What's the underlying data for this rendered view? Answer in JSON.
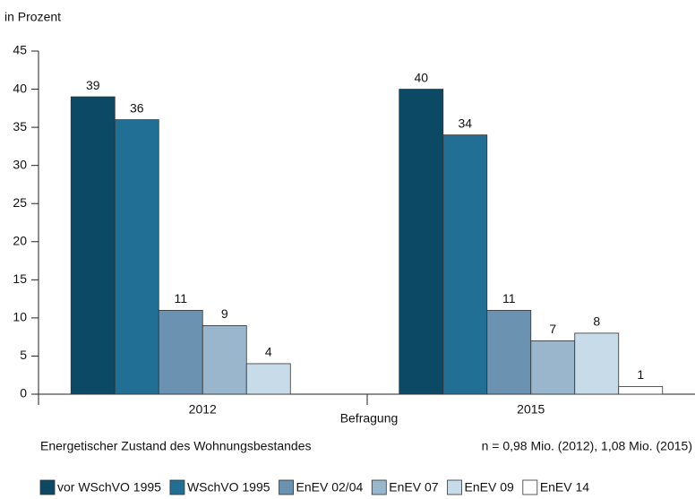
{
  "chart_data": {
    "type": "bar",
    "y_label": "in Prozent",
    "x_label": "Befragung",
    "legend_title": "Energetischer Zustand des Wohnungsbestandes",
    "note": "n = 0,98 Mio. (2012), 1,08 Mio. (2015)",
    "categories": [
      "2012",
      "2015"
    ],
    "series": [
      {
        "name": "vor WSchVO 1995",
        "color": "#0b4965",
        "values": [
          39,
          40
        ]
      },
      {
        "name": "WSchVO 1995",
        "color": "#226f95",
        "values": [
          36,
          34
        ]
      },
      {
        "name": "EnEV 02/04",
        "color": "#6b93b1",
        "values": [
          11,
          11
        ]
      },
      {
        "name": "EnEV 07",
        "color": "#99b6cc",
        "values": [
          9,
          7
        ]
      },
      {
        "name": "EnEV 09",
        "color": "#c7dbe9",
        "values": [
          4,
          8
        ]
      },
      {
        "name": "EnEV 14",
        "color": "#ffffff",
        "values": [
          null,
          1
        ]
      }
    ],
    "ylim": [
      0,
      45
    ],
    "yticks": [
      0,
      5,
      10,
      15,
      20,
      25,
      30,
      35,
      40,
      45
    ],
    "grid": false
  }
}
